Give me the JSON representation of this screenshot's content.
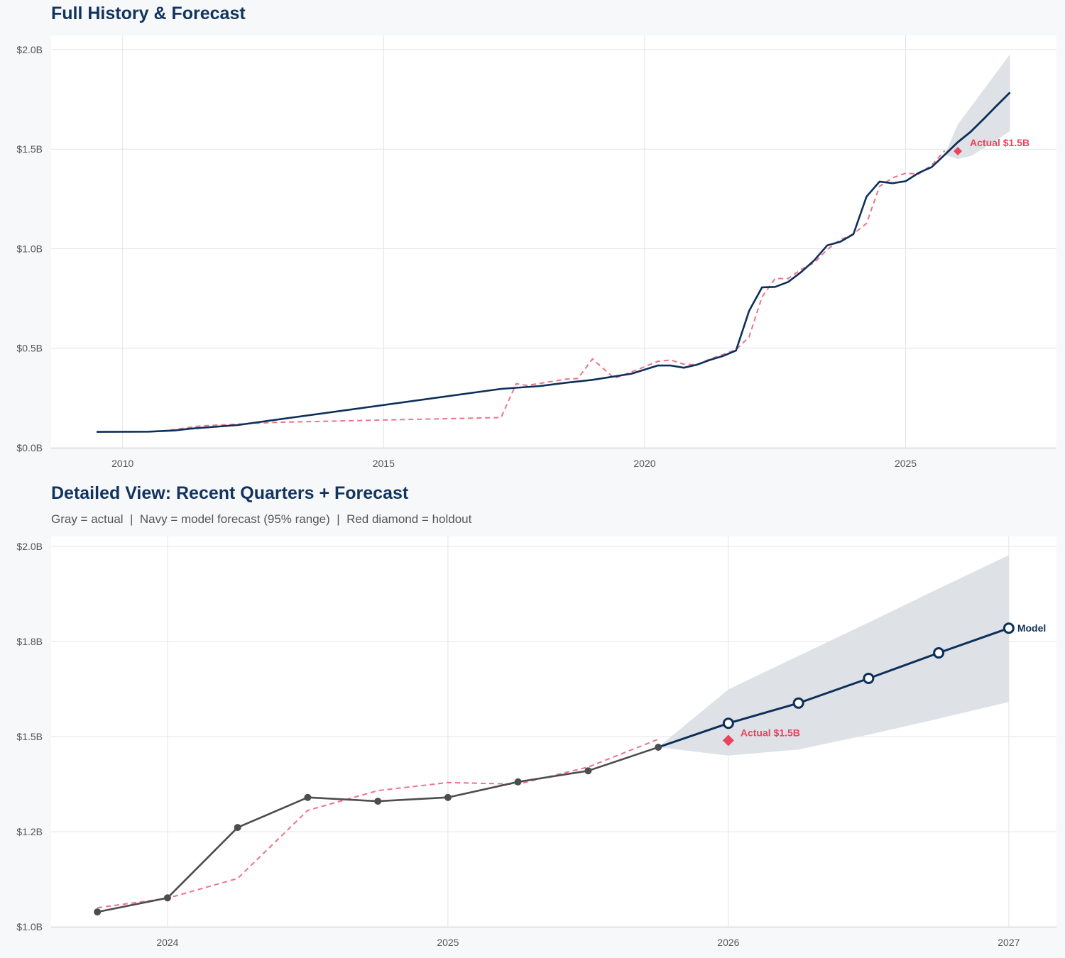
{
  "chart_data": [
    {
      "type": "line",
      "title": "Full History & Forecast",
      "xlim": [
        2008.63,
        2027.89
      ],
      "ylim": [
        0,
        2.071
      ],
      "xticks": [
        2010,
        2015,
        2020,
        2025
      ],
      "xtick_labels": [
        "2010",
        "2015",
        "2020",
        "2025"
      ],
      "yticks": [
        0,
        0.5,
        1.0,
        1.5,
        2.0
      ],
      "ytick_labels": [
        "$0.0B",
        "$0.5B",
        "$1.0B",
        "$1.5B",
        "$2.0B"
      ],
      "grid": true,
      "actual_color": "#0d2f5a",
      "actual": [
        [
          2009.5,
          0.08
        ],
        [
          2010.5,
          0.081
        ],
        [
          2011.0,
          0.087
        ],
        [
          2011.3,
          0.096
        ],
        [
          2012.2,
          0.114
        ],
        [
          2017.25,
          0.296
        ],
        [
          2018.0,
          0.31
        ],
        [
          2018.5,
          0.327
        ],
        [
          2019.0,
          0.341
        ],
        [
          2019.75,
          0.372
        ],
        [
          2020.25,
          0.413
        ],
        [
          2020.5,
          0.413
        ],
        [
          2020.75,
          0.402
        ],
        [
          2021.0,
          0.417
        ],
        [
          2021.25,
          0.441
        ],
        [
          2021.5,
          0.461
        ],
        [
          2021.75,
          0.488
        ],
        [
          2022.0,
          0.687
        ],
        [
          2022.25,
          0.806
        ],
        [
          2022.5,
          0.808
        ],
        [
          2022.75,
          0.833
        ],
        [
          2023.0,
          0.883
        ],
        [
          2023.25,
          0.942
        ],
        [
          2023.5,
          1.017
        ],
        [
          2023.75,
          1.035
        ],
        [
          2024.0,
          1.073
        ],
        [
          2024.25,
          1.261
        ],
        [
          2024.5,
          1.337
        ],
        [
          2024.75,
          1.329
        ],
        [
          2025.0,
          1.339
        ],
        [
          2025.25,
          1.381
        ],
        [
          2025.5,
          1.41
        ],
        [
          2025.75,
          1.472
        ]
      ],
      "fitted": [
        [
          2010.75,
          0.083
        ],
        [
          2011.5,
          0.11
        ],
        [
          2012.96,
          0.128
        ],
        [
          2017.25,
          0.152
        ],
        [
          2017.54,
          0.322
        ],
        [
          2017.75,
          0.313
        ],
        [
          2018.5,
          0.345
        ],
        [
          2018.72,
          0.348
        ],
        [
          2019.0,
          0.446
        ],
        [
          2019.42,
          0.349
        ],
        [
          2019.87,
          0.393
        ],
        [
          2020.25,
          0.434
        ],
        [
          2020.5,
          0.441
        ],
        [
          2020.75,
          0.42
        ],
        [
          2021.0,
          0.417
        ],
        [
          2021.25,
          0.446
        ],
        [
          2021.5,
          0.468
        ],
        [
          2021.75,
          0.493
        ],
        [
          2022.0,
          0.556
        ],
        [
          2022.25,
          0.758
        ],
        [
          2022.5,
          0.85
        ],
        [
          2022.75,
          0.85
        ],
        [
          2023.0,
          0.896
        ],
        [
          2023.25,
          0.93
        ],
        [
          2023.5,
          0.996
        ],
        [
          2023.75,
          1.045
        ],
        [
          2024.0,
          1.074
        ],
        [
          2024.25,
          1.127
        ],
        [
          2024.5,
          1.313
        ],
        [
          2024.75,
          1.356
        ],
        [
          2025.0,
          1.379
        ],
        [
          2025.25,
          1.375
        ],
        [
          2025.5,
          1.42
        ],
        [
          2025.75,
          1.493
        ]
      ],
      "forecast": [
        [
          2025.75,
          1.472
        ],
        [
          2026.0,
          1.535
        ],
        [
          2026.25,
          1.588
        ],
        [
          2026.5,
          1.653
        ],
        [
          2026.75,
          1.72
        ],
        [
          2027.0,
          1.785
        ]
      ],
      "band_upper": [
        1.472,
        1.624,
        1.712,
        1.8,
        1.889,
        1.977
      ],
      "band_lower": [
        1.472,
        1.45,
        1.466,
        1.505,
        1.547,
        1.591
      ],
      "holdout": {
        "x": 2026.0,
        "y": 1.49,
        "label": "Actual $1.5B"
      },
      "show_markers": false
    },
    {
      "type": "line",
      "title": "Detailed View: Recent Quarters + Forecast",
      "subtitle": "Gray = actual  |  Navy = model forecast (95% range)  |  Red diamond = holdout",
      "xlim": [
        2023.585,
        2027.17
      ],
      "ylim": [
        1.0,
        2.026
      ],
      "xticks": [
        2024,
        2025,
        2026,
        2027
      ],
      "xtick_labels": [
        "2024",
        "2025",
        "2026",
        "2027"
      ],
      "yticks": [
        1.0,
        1.25,
        1.5,
        1.75,
        2.0
      ],
      "ytick_labels": [
        "$1.0B",
        "$1.2B",
        "$1.5B",
        "$1.8B",
        "$2.0B"
      ],
      "grid": true,
      "actual_color": "#4d4d4d",
      "actual": [
        [
          2023.75,
          1.039
        ],
        [
          2024.0,
          1.076
        ],
        [
          2024.25,
          1.261
        ],
        [
          2024.5,
          1.34
        ],
        [
          2024.75,
          1.33
        ],
        [
          2025.0,
          1.34
        ],
        [
          2025.25,
          1.381
        ],
        [
          2025.5,
          1.41
        ],
        [
          2025.75,
          1.472
        ]
      ],
      "fitted": [
        [
          2023.75,
          1.05
        ],
        [
          2024.0,
          1.075
        ],
        [
          2024.25,
          1.127
        ],
        [
          2024.5,
          1.306
        ],
        [
          2024.75,
          1.358
        ],
        [
          2025.0,
          1.379
        ],
        [
          2025.25,
          1.375
        ],
        [
          2025.5,
          1.42
        ],
        [
          2025.75,
          1.493
        ]
      ],
      "forecast": [
        [
          2025.75,
          1.472
        ],
        [
          2026.0,
          1.535
        ],
        [
          2026.25,
          1.588
        ],
        [
          2026.5,
          1.653
        ],
        [
          2026.75,
          1.72
        ],
        [
          2027.0,
          1.785
        ]
      ],
      "band_upper": [
        1.472,
        1.624,
        1.712,
        1.8,
        1.889,
        1.977
      ],
      "band_lower": [
        1.472,
        1.45,
        1.466,
        1.505,
        1.547,
        1.591
      ],
      "holdout": {
        "x": 2026.0,
        "y": 1.49,
        "label": "Actual $1.5B"
      },
      "forecast_label": "Model",
      "show_markers": true
    }
  ],
  "colors": {
    "navy": "#0d2f5a",
    "red": "#e8435f",
    "red_dashed": "#ee7389",
    "band": "#dce0e6",
    "gray": "#4d4d4d",
    "grid": "#e4e4e4"
  }
}
